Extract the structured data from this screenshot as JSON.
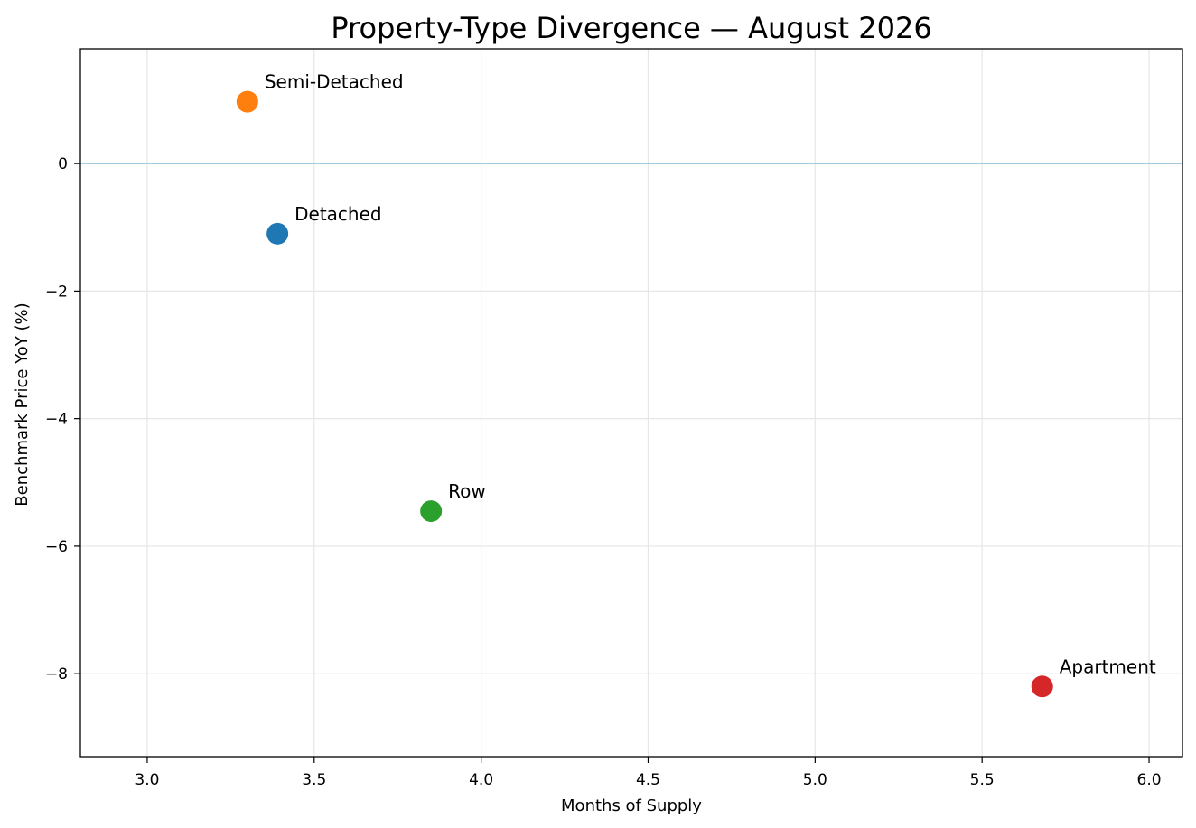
{
  "chart_data": {
    "type": "scatter",
    "title": "Property-Type Divergence — August 2026",
    "xlabel": "Months of Supply",
    "ylabel": "Benchmark Price YoY (%)",
    "xlim": [
      2.8,
      6.1
    ],
    "ylim": [
      -9.3,
      1.8
    ],
    "x_ticks": [
      3.0,
      3.5,
      4.0,
      4.5,
      5.0,
      5.5,
      6.0
    ],
    "x_tick_labels": [
      "3.0",
      "3.5",
      "4.0",
      "4.5",
      "5.0",
      "5.5",
      "6.0"
    ],
    "y_ticks": [
      0,
      -2,
      -4,
      -6,
      -8
    ],
    "y_tick_labels": [
      "0",
      "−2",
      "−4",
      "−6",
      "−8"
    ],
    "grid": true,
    "reference_line": {
      "y": 0,
      "color": "#9ec5dd"
    },
    "points": [
      {
        "label": "Detached",
        "x": 3.39,
        "y": -1.1,
        "color": "#1f77b4"
      },
      {
        "label": "Semi-Detached",
        "x": 3.3,
        "y": 0.97,
        "color": "#ff7f0e"
      },
      {
        "label": "Row",
        "x": 3.85,
        "y": -5.45,
        "color": "#2ca02c"
      },
      {
        "label": "Apartment",
        "x": 5.68,
        "y": -8.2,
        "color": "#d62728"
      }
    ]
  }
}
